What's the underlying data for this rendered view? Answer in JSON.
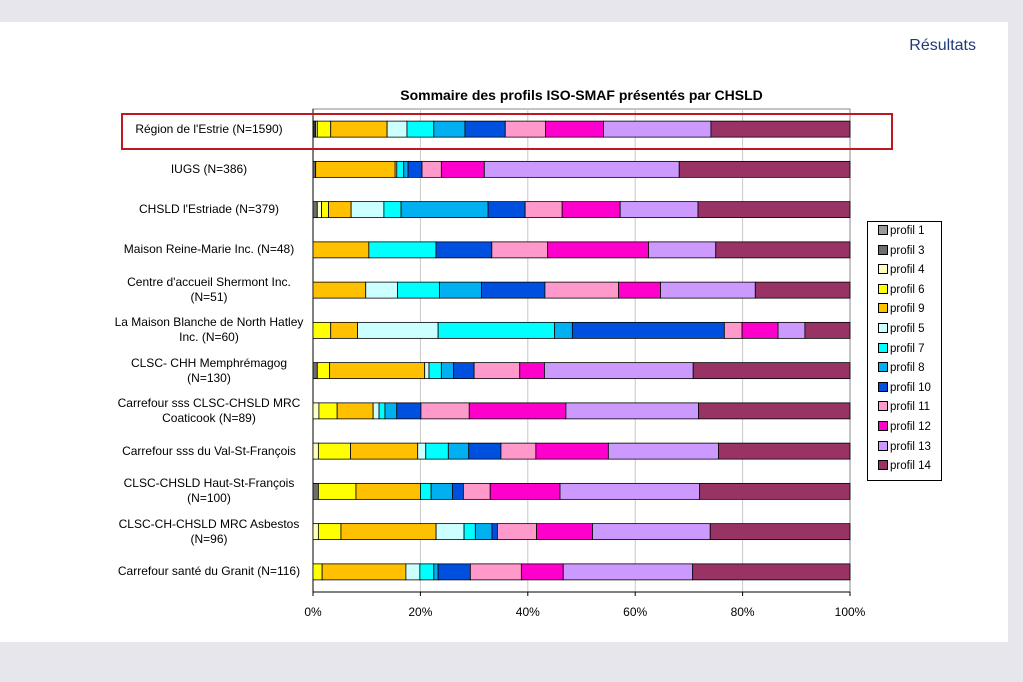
{
  "header": {
    "label": "Résultats"
  },
  "chart_data": {
    "type": "bar",
    "orientation": "horizontal",
    "stacked": "percent",
    "title": "Sommaire des profils ISO-SMAF présentés par CHSLD",
    "xlabel": "",
    "ylabel": "",
    "xlim": [
      0,
      100
    ],
    "x_ticks": [
      "0%",
      "20%",
      "40%",
      "60%",
      "80%",
      "100%"
    ],
    "grid": "vertical",
    "legend": "right",
    "categories": [
      "Région de l'Estrie  (N=1590)",
      "IUGS  (N=386)",
      "CHSLD l'Estriade  (N=379)",
      "Maison Reine-Marie Inc.  (N=48)",
      "Centre d'accueil Shermont Inc. (N=51)",
      "La Maison Blanche de North Hatley Inc.  (N=60)",
      "CLSC- CHH Memphrémagog (N=130)",
      "Carrefour sss CLSC-CHSLD MRC Coaticook (N=89)",
      "Carrefour sss du  Val-St-François",
      "CLSC-CHSLD Haut-St-François (N=100)",
      "CLSC-CH-CHSLD MRC Asbestos  (N=96)",
      "Carrefour santé du Granit (N=116)"
    ],
    "series": [
      {
        "name": "profil 1",
        "color": "#9a9a9a",
        "values": [
          0.2,
          0.0,
          0.0,
          0.0,
          0.0,
          0.0,
          0.0,
          0.0,
          0.0,
          0.0,
          0.0,
          0.0
        ]
      },
      {
        "name": "profil 3",
        "color": "#6e6e6e",
        "values": [
          0.3,
          0.5,
          0.8,
          0.0,
          0.0,
          0.0,
          0.8,
          0.0,
          0.0,
          1.0,
          0.0,
          0.0
        ]
      },
      {
        "name": "profil 4",
        "color": "#ffffc0",
        "values": [
          0.3,
          0.0,
          0.8,
          0.0,
          0.0,
          0.0,
          0.0,
          1.1,
          1.0,
          0.0,
          1.0,
          0.0
        ]
      },
      {
        "name": "profil 6",
        "color": "#ffff00",
        "values": [
          2.5,
          0.0,
          1.3,
          0.0,
          0.0,
          3.3,
          2.3,
          3.4,
          6.0,
          7.0,
          4.2,
          1.7
        ]
      },
      {
        "name": "profil 9",
        "color": "#ffc000",
        "values": [
          10.5,
          14.8,
          4.2,
          10.4,
          9.8,
          5.0,
          17.7,
          6.7,
          12.5,
          12.0,
          17.7,
          15.6
        ]
      },
      {
        "name": "profil 5",
        "color": "#ccffff",
        "values": [
          3.7,
          0.3,
          6.1,
          0.0,
          5.9,
          15.0,
          0.8,
          1.1,
          1.5,
          0.0,
          5.2,
          2.6
        ]
      },
      {
        "name": "profil 7",
        "color": "#00ffff",
        "values": [
          5.0,
          1.3,
          3.2,
          12.5,
          7.8,
          21.7,
          2.3,
          1.1,
          4.2,
          2.0,
          2.1,
          2.6
        ]
      },
      {
        "name": "profil 8",
        "color": "#00b0f0",
        "values": [
          5.8,
          0.8,
          16.2,
          0.0,
          7.8,
          3.3,
          2.3,
          2.2,
          3.8,
          4.0,
          3.1,
          0.8
        ]
      },
      {
        "name": "profil 10",
        "color": "#0050e0",
        "values": [
          7.5,
          2.6,
          6.9,
          10.4,
          11.8,
          28.3,
          3.8,
          4.5,
          6.0,
          2.0,
          1.0,
          6.0
        ]
      },
      {
        "name": "profil 11",
        "color": "#ff99cc",
        "values": [
          7.5,
          3.6,
          6.9,
          10.4,
          13.7,
          3.3,
          8.5,
          9.0,
          6.5,
          5.0,
          7.3,
          9.5
        ]
      },
      {
        "name": "profil 12",
        "color": "#ff00cc",
        "values": [
          10.8,
          8.0,
          10.8,
          18.8,
          7.8,
          6.7,
          4.6,
          18.0,
          13.5,
          13.0,
          10.4,
          7.8
        ]
      },
      {
        "name": "profil 13",
        "color": "#cc99ff",
        "values": [
          20.0,
          36.3,
          14.5,
          12.5,
          17.6,
          5.0,
          27.7,
          24.7,
          20.5,
          26.0,
          21.9,
          24.1
        ]
      },
      {
        "name": "profil 14",
        "color": "#993366",
        "values": [
          25.9,
          31.8,
          28.3,
          25.0,
          17.6,
          8.4,
          29.2,
          28.2,
          24.5,
          28.0,
          26.0,
          29.3
        ]
      }
    ],
    "highlight_category": "Région de l'Estrie  (N=1590)",
    "highlight_color": "#c01820"
  }
}
